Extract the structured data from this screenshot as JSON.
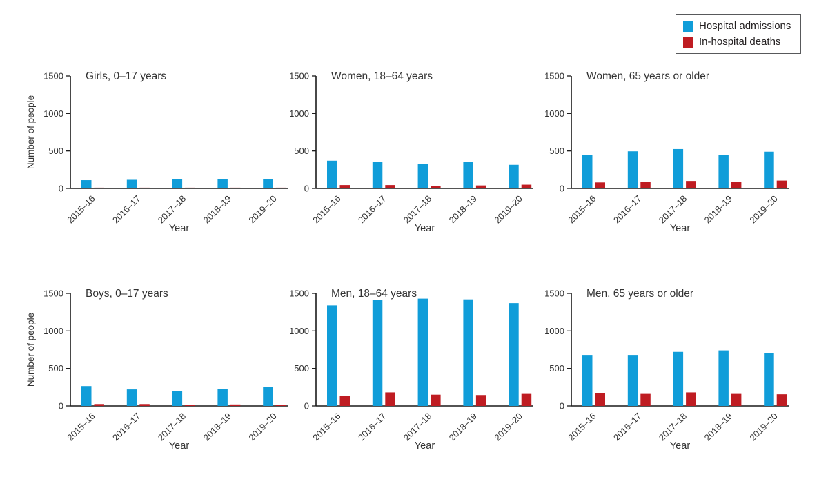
{
  "figure": {
    "background": "#ffffff",
    "axis_color": "#1a1a1a",
    "text_color": "#333333"
  },
  "legend": {
    "border_color": "#58595b",
    "items": [
      {
        "label": "Hospital admissions",
        "color": "#109dd9",
        "icon": "blue-square-swatch"
      },
      {
        "label": "In-hospital deaths",
        "color": "#bf1c22",
        "icon": "red-square-swatch"
      }
    ]
  },
  "chart_data": [
    {
      "type": "bar",
      "title": "Girls, 0–17 years",
      "categories": [
        "2015–16",
        "2016–17",
        "2017–18",
        "2018–19",
        "2019–20"
      ],
      "series": [
        {
          "name": "Hospital admissions",
          "color": "#109dd9",
          "values": [
            110,
            115,
            120,
            125,
            120
          ]
        },
        {
          "name": "In-hospital deaths",
          "color": "#bf1c22",
          "values": [
            10,
            10,
            10,
            10,
            10
          ]
        }
      ],
      "xlabel": "Year",
      "ylabel": "Number of people",
      "show_ylabel": true,
      "ylim": [
        0,
        1500
      ],
      "yticks": [
        0,
        500,
        1000,
        1500
      ],
      "grid": false
    },
    {
      "type": "bar",
      "title": "Women, 18–64 years",
      "categories": [
        "2015–16",
        "2016–17",
        "2017–18",
        "2018–19",
        "2019–20"
      ],
      "series": [
        {
          "name": "Hospital admissions",
          "color": "#109dd9",
          "values": [
            370,
            355,
            330,
            350,
            315
          ]
        },
        {
          "name": "In-hospital deaths",
          "color": "#bf1c22",
          "values": [
            45,
            45,
            35,
            40,
            50
          ]
        }
      ],
      "xlabel": "Year",
      "ylabel": "Number of people",
      "show_ylabel": false,
      "ylim": [
        0,
        1500
      ],
      "yticks": [
        0,
        500,
        1000,
        1500
      ],
      "grid": false
    },
    {
      "type": "bar",
      "title": "Women, 65 years or older",
      "categories": [
        "2015–16",
        "2016–17",
        "2017–18",
        "2018–19",
        "2019–20"
      ],
      "series": [
        {
          "name": "Hospital admissions",
          "color": "#109dd9",
          "values": [
            450,
            495,
            525,
            450,
            490
          ]
        },
        {
          "name": "In-hospital deaths",
          "color": "#bf1c22",
          "values": [
            80,
            90,
            100,
            90,
            105
          ]
        }
      ],
      "xlabel": "Year",
      "ylabel": "Number of people",
      "show_ylabel": false,
      "ylim": [
        0,
        1500
      ],
      "yticks": [
        0,
        500,
        1000,
        1500
      ],
      "grid": false
    },
    {
      "type": "bar",
      "title": "Boys, 0–17 years",
      "categories": [
        "2015–16",
        "2016–17",
        "2017–18",
        "2018–19",
        "2019–20"
      ],
      "series": [
        {
          "name": "Hospital admissions",
          "color": "#109dd9",
          "values": [
            265,
            220,
            200,
            230,
            250
          ]
        },
        {
          "name": "In-hospital deaths",
          "color": "#bf1c22",
          "values": [
            25,
            25,
            15,
            20,
            15
          ]
        }
      ],
      "xlabel": "Year",
      "ylabel": "Number of people",
      "show_ylabel": true,
      "ylim": [
        0,
        1500
      ],
      "yticks": [
        0,
        500,
        1000,
        1500
      ],
      "grid": false
    },
    {
      "type": "bar",
      "title": "Men, 18–64 years",
      "categories": [
        "2015–16",
        "2016–17",
        "2017–18",
        "2018–19",
        "2019–20"
      ],
      "series": [
        {
          "name": "Hospital admissions",
          "color": "#109dd9",
          "values": [
            1340,
            1410,
            1430,
            1420,
            1370
          ]
        },
        {
          "name": "In-hospital deaths",
          "color": "#bf1c22",
          "values": [
            135,
            180,
            150,
            145,
            160
          ]
        }
      ],
      "xlabel": "Year",
      "ylabel": "Number of people",
      "show_ylabel": false,
      "ylim": [
        0,
        1500
      ],
      "yticks": [
        0,
        500,
        1000,
        1500
      ],
      "grid": false
    },
    {
      "type": "bar",
      "title": "Men, 65 years or older",
      "categories": [
        "2015–16",
        "2016–17",
        "2017–18",
        "2018–19",
        "2019–20"
      ],
      "series": [
        {
          "name": "Hospital admissions",
          "color": "#109dd9",
          "values": [
            680,
            680,
            720,
            740,
            700
          ]
        },
        {
          "name": "In-hospital deaths",
          "color": "#bf1c22",
          "values": [
            170,
            160,
            180,
            160,
            155
          ]
        }
      ],
      "xlabel": "Year",
      "ylabel": "Number of people",
      "show_ylabel": false,
      "ylim": [
        0,
        1500
      ],
      "yticks": [
        0,
        500,
        1000,
        1500
      ],
      "grid": false
    }
  ]
}
